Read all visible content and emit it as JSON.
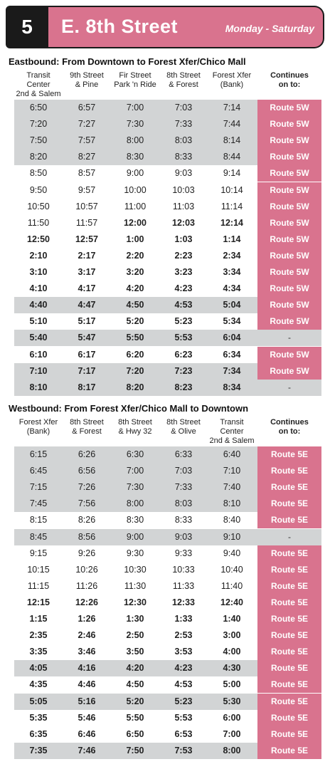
{
  "header": {
    "route_number": "5",
    "route_name": "E. 8th Street",
    "days": "Monday - Saturday"
  },
  "eastbound": {
    "title": "Eastbound: From Downtown to Forest Xfer/Chico Mall",
    "columns": [
      [
        "Transit Center",
        "2nd & Salem"
      ],
      [
        "9th Street",
        "& Pine"
      ],
      [
        "Fir Street",
        "Park 'n Ride"
      ],
      [
        "8th Street",
        "& Forest"
      ],
      [
        "Forest Xfer",
        "(Bank)"
      ],
      [
        "Continues",
        "on to:"
      ]
    ],
    "rows": [
      {
        "times": [
          "6:50",
          "6:57",
          "7:00",
          "7:03",
          "7:14"
        ],
        "continues": "Route 5W",
        "pm": false,
        "shade": true
      },
      {
        "times": [
          "7:20",
          "7:27",
          "7:30",
          "7:33",
          "7:44"
        ],
        "continues": "Route 5W",
        "pm": false,
        "shade": true
      },
      {
        "times": [
          "7:50",
          "7:57",
          "8:00",
          "8:03",
          "8:14"
        ],
        "continues": "Route 5W",
        "pm": false,
        "shade": true
      },
      {
        "times": [
          "8:20",
          "8:27",
          "8:30",
          "8:33",
          "8:44"
        ],
        "continues": "Route 5W",
        "pm": false,
        "shade": true
      },
      {
        "times": [
          "8:50",
          "8:57",
          "9:00",
          "9:03",
          "9:14"
        ],
        "continues": "Route 5W",
        "pm": false,
        "shade": false
      },
      {
        "times": [
          "9:50",
          "9:57",
          "10:00",
          "10:03",
          "10:14"
        ],
        "continues": "Route 5W",
        "pm": false,
        "shade": false
      },
      {
        "times": [
          "10:50",
          "10:57",
          "11:00",
          "11:03",
          "11:14"
        ],
        "continues": "Route 5W",
        "pm": false,
        "shade": false
      },
      {
        "times": [
          "11:50",
          "11:57",
          "12:00",
          "12:03",
          "12:14"
        ],
        "continues": "Route 5W",
        "pm": false,
        "shade": false,
        "bold_from": 2
      },
      {
        "times": [
          "12:50",
          "12:57",
          "1:00",
          "1:03",
          "1:14"
        ],
        "continues": "Route 5W",
        "pm": true,
        "shade": false
      },
      {
        "times": [
          "2:10",
          "2:17",
          "2:20",
          "2:23",
          "2:34"
        ],
        "continues": "Route 5W",
        "pm": true,
        "shade": false
      },
      {
        "times": [
          "3:10",
          "3:17",
          "3:20",
          "3:23",
          "3:34"
        ],
        "continues": "Route 5W",
        "pm": true,
        "shade": false
      },
      {
        "times": [
          "4:10",
          "4:17",
          "4:20",
          "4:23",
          "4:34"
        ],
        "continues": "Route 5W",
        "pm": true,
        "shade": false
      },
      {
        "times": [
          "4:40",
          "4:47",
          "4:50",
          "4:53",
          "5:04"
        ],
        "continues": "Route 5W",
        "pm": true,
        "shade": true
      },
      {
        "times": [
          "5:10",
          "5:17",
          "5:20",
          "5:23",
          "5:34"
        ],
        "continues": "Route 5W",
        "pm": true,
        "shade": false
      },
      {
        "times": [
          "5:40",
          "5:47",
          "5:50",
          "5:53",
          "6:04"
        ],
        "continues": "-",
        "pm": true,
        "shade": true
      },
      {
        "times": [
          "6:10",
          "6:17",
          "6:20",
          "6:23",
          "6:34"
        ],
        "continues": "Route 5W",
        "pm": true,
        "shade": false
      },
      {
        "times": [
          "7:10",
          "7:17",
          "7:20",
          "7:23",
          "7:34"
        ],
        "continues": "Route 5W",
        "pm": true,
        "shade": true
      },
      {
        "times": [
          "8:10",
          "8:17",
          "8:20",
          "8:23",
          "8:34"
        ],
        "continues": "-",
        "pm": true,
        "shade": true
      }
    ]
  },
  "westbound": {
    "title": "Westbound:  From Forest Xfer/Chico Mall to Downtown",
    "columns": [
      [
        "Forest Xfer",
        "(Bank)"
      ],
      [
        "8th Street",
        "& Forest"
      ],
      [
        "8th Street",
        "& Hwy 32"
      ],
      [
        "8th Street",
        "& Olive"
      ],
      [
        "Transit Center",
        "2nd & Salem"
      ],
      [
        "Continues",
        "on to:"
      ]
    ],
    "rows": [
      {
        "times": [
          "6:15",
          "6:26",
          "6:30",
          "6:33",
          "6:40"
        ],
        "continues": "Route 5E",
        "pm": false,
        "shade": true
      },
      {
        "times": [
          "6:45",
          "6:56",
          "7:00",
          "7:03",
          "7:10"
        ],
        "continues": "Route 5E",
        "pm": false,
        "shade": true
      },
      {
        "times": [
          "7:15",
          "7:26",
          "7:30",
          "7:33",
          "7:40"
        ],
        "continues": "Route 5E",
        "pm": false,
        "shade": true
      },
      {
        "times": [
          "7:45",
          "7:56",
          "8:00",
          "8:03",
          "8:10"
        ],
        "continues": "Route 5E",
        "pm": false,
        "shade": true
      },
      {
        "times": [
          "8:15",
          "8:26",
          "8:30",
          "8:33",
          "8:40"
        ],
        "continues": "Route 5E",
        "pm": false,
        "shade": false
      },
      {
        "times": [
          "8:45",
          "8:56",
          "9:00",
          "9:03",
          "9:10"
        ],
        "continues": "-",
        "pm": false,
        "shade": true
      },
      {
        "times": [
          "9:15",
          "9:26",
          "9:30",
          "9:33",
          "9:40"
        ],
        "continues": "Route 5E",
        "pm": false,
        "shade": false
      },
      {
        "times": [
          "10:15",
          "10:26",
          "10:30",
          "10:33",
          "10:40"
        ],
        "continues": "Route 5E",
        "pm": false,
        "shade": false
      },
      {
        "times": [
          "11:15",
          "11:26",
          "11:30",
          "11:33",
          "11:40"
        ],
        "continues": "Route 5E",
        "pm": false,
        "shade": false
      },
      {
        "times": [
          "12:15",
          "12:26",
          "12:30",
          "12:33",
          "12:40"
        ],
        "continues": "Route 5E",
        "pm": true,
        "shade": false
      },
      {
        "times": [
          "1:15",
          "1:26",
          "1:30",
          "1:33",
          "1:40"
        ],
        "continues": "Route 5E",
        "pm": true,
        "shade": false
      },
      {
        "times": [
          "2:35",
          "2:46",
          "2:50",
          "2:53",
          "3:00"
        ],
        "continues": "Route 5E",
        "pm": true,
        "shade": false
      },
      {
        "times": [
          "3:35",
          "3:46",
          "3:50",
          "3:53",
          "4:00"
        ],
        "continues": "Route 5E",
        "pm": true,
        "shade": false
      },
      {
        "times": [
          "4:05",
          "4:16",
          "4:20",
          "4:23",
          "4:30"
        ],
        "continues": "Route 5E",
        "pm": true,
        "shade": true
      },
      {
        "times": [
          "4:35",
          "4:46",
          "4:50",
          "4:53",
          "5:00"
        ],
        "continues": "Route 5E",
        "pm": true,
        "shade": false
      },
      {
        "times": [
          "5:05",
          "5:16",
          "5:20",
          "5:23",
          "5:30"
        ],
        "continues": "Route 5E",
        "pm": true,
        "shade": true
      },
      {
        "times": [
          "5:35",
          "5:46",
          "5:50",
          "5:53",
          "6:00"
        ],
        "continues": "Route 5E",
        "pm": true,
        "shade": false
      },
      {
        "times": [
          "6:35",
          "6:46",
          "6:50",
          "6:53",
          "7:00"
        ],
        "continues": "Route 5E",
        "pm": true,
        "shade": false
      },
      {
        "times": [
          "7:35",
          "7:46",
          "7:50",
          "7:53",
          "8:00"
        ],
        "continues": "Route 5E",
        "pm": true,
        "shade": true
      }
    ]
  },
  "colors": {
    "accent": "#d9738e",
    "shade": "#d2d4d5",
    "dark": "#1a1a1a"
  }
}
